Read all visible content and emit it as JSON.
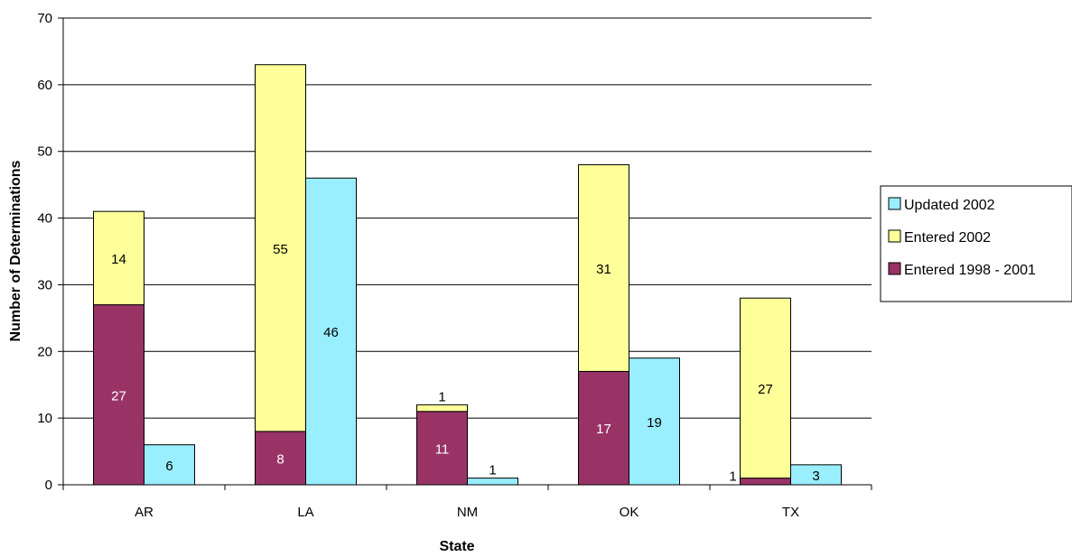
{
  "chart_data": {
    "type": "bar",
    "stacked_groups": true,
    "categories": [
      "AR",
      "LA",
      "NM",
      "OK",
      "TX"
    ],
    "xlabel": "State",
    "ylabel": "Number of Determinations",
    "ylim": [
      0,
      70
    ],
    "yticks": [
      0,
      10,
      20,
      30,
      40,
      50,
      60,
      70
    ],
    "grid": true,
    "legend_position": "right",
    "series": [
      {
        "name": "Entered 1998 - 2001",
        "stack": "entered",
        "color": "#993366",
        "label_color": "#ffffff",
        "values": [
          27,
          8,
          11,
          17,
          1
        ],
        "labels": [
          "27",
          "8",
          "11",
          "17",
          "1"
        ]
      },
      {
        "name": "Entered 2002",
        "stack": "entered",
        "color": "#ffff99",
        "label_color": "#000000",
        "values": [
          14,
          55,
          1,
          31,
          27
        ],
        "labels": [
          "14",
          "55",
          "1",
          "31",
          "27"
        ]
      },
      {
        "name": "Updated 2002",
        "stack": "updated",
        "color": "#99eeff",
        "label_color": "#000000",
        "values": [
          6,
          46,
          1,
          19,
          3
        ],
        "labels": [
          "6",
          "46",
          "1",
          "19",
          "3"
        ]
      }
    ],
    "legend_order": [
      "Updated 2002",
      "Entered 2002",
      "Entered 1998 - 2001"
    ]
  }
}
